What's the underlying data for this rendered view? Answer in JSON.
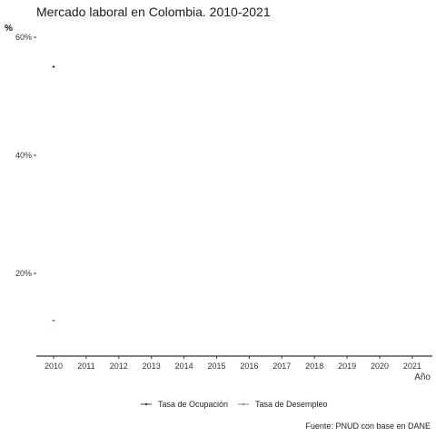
{
  "chart_data": {
    "type": "line",
    "title": "Mercado laboral en Colombia. 2010-2021",
    "ylabel": "%",
    "xlabel": "Año",
    "caption": "Fuente: PNUD con base en DANE",
    "x": [
      "2010",
      "2011",
      "2012",
      "2013",
      "2014",
      "2015",
      "2016",
      "2017",
      "2018",
      "2019",
      "2020",
      "2021"
    ],
    "ylim": [
      6,
      62
    ],
    "y_ticks": [
      {
        "value": 20,
        "label": "20%"
      },
      {
        "value": 40,
        "label": "40%"
      },
      {
        "value": 60,
        "label": "60%"
      }
    ],
    "series": [
      {
        "name": "Tasa de Ocupación",
        "color": "#1f3f73",
        "values": [
          55.0,
          null,
          null,
          null,
          null,
          null,
          null,
          null,
          null,
          null,
          null,
          null
        ]
      },
      {
        "name": "Tasa de Desempleo",
        "color": "#6f8fce",
        "values": [
          12.0,
          null,
          null,
          null,
          null,
          null,
          null,
          null,
          null,
          null,
          null,
          null
        ]
      }
    ],
    "grid": false,
    "legend_position": "bottom"
  }
}
